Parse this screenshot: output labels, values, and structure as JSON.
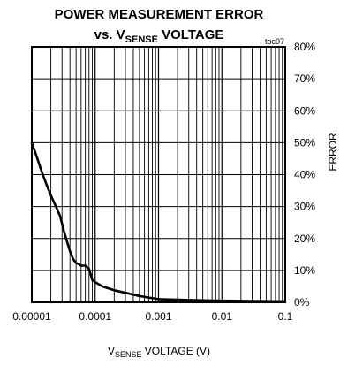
{
  "chart_data": {
    "type": "line",
    "title": "POWER MEASUREMENT ERROR",
    "subtitle_prefix": "vs. V",
    "subtitle_sub": "SENSE",
    "subtitle_suffix": " VOLTAGE",
    "note": "toc07",
    "xlabel_main": "V",
    "xlabel_sub": "SENSE",
    "xlabel_suffix": " VOLTAGE (V)",
    "ylabel": "ERROR",
    "xscale": "log",
    "xlim": [
      1e-05,
      0.1
    ],
    "ylim": [
      0,
      80
    ],
    "grid": true,
    "x_ticks": [
      {
        "value": 1e-05,
        "label": "0.00001"
      },
      {
        "value": 0.0001,
        "label": "0.0001"
      },
      {
        "value": 0.001,
        "label": "0.001"
      },
      {
        "value": 0.01,
        "label": "0.01"
      },
      {
        "value": 0.1,
        "label": "0.1"
      }
    ],
    "y_ticks": [
      {
        "value": 0,
        "label": "0%"
      },
      {
        "value": 10,
        "label": "10%"
      },
      {
        "value": 20,
        "label": "20%"
      },
      {
        "value": 30,
        "label": "30%"
      },
      {
        "value": 40,
        "label": "40%"
      },
      {
        "value": 50,
        "label": "50%"
      },
      {
        "value": 60,
        "label": "60%"
      },
      {
        "value": 70,
        "label": "70%"
      },
      {
        "value": 80,
        "label": "80%"
      }
    ],
    "series": [
      {
        "color": "#000000",
        "x": [
          1e-05,
          1.2e-05,
          1.4e-05,
          1.7e-05,
          2e-05,
          2.4e-05,
          2.8e-05,
          3.2e-05,
          3.6e-05,
          4e-05,
          4.5e-05,
          5e-05,
          5.5e-05,
          6e-05,
          7e-05,
          8e-05,
          9e-05,
          0.0001,
          0.00013,
          0.0002,
          0.0003,
          0.0005,
          0.0007,
          0.001,
          0.002,
          0.005,
          0.01,
          0.03,
          0.1
        ],
        "y": [
          50,
          45.5,
          41.5,
          37,
          33.5,
          30,
          27,
          22.5,
          19,
          16,
          13.5,
          12.3,
          12,
          11.5,
          11.5,
          10.5,
          7,
          6.3,
          5,
          3.8,
          3,
          2,
          1.5,
          1,
          0.8,
          0.6,
          0.5,
          0.4,
          0.3
        ]
      }
    ]
  }
}
